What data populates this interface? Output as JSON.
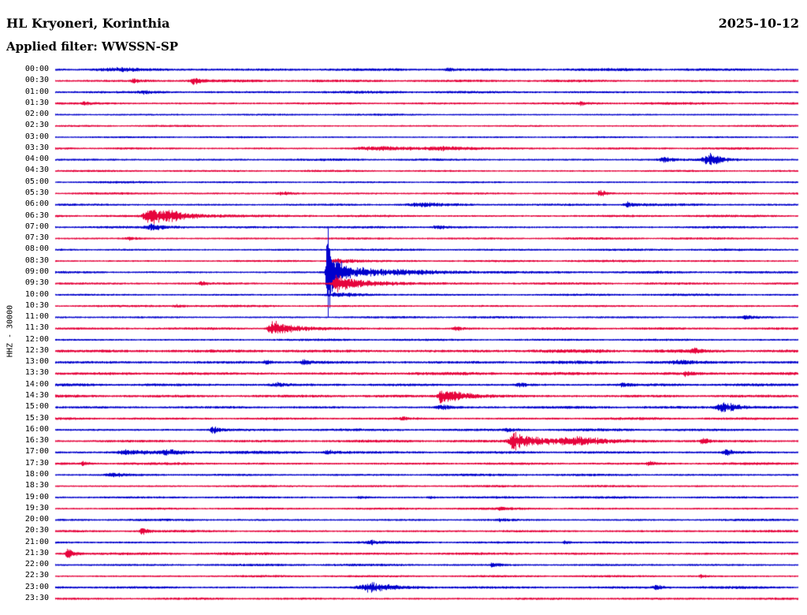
{
  "header": {
    "station_title": "HL Kryoneri, Korinthia",
    "date": "2025-10-12",
    "filter_label": "Applied filter: WWSSN-SP"
  },
  "y_axis_label": "HHZ - 30000",
  "colors": {
    "blue": "#0000cd",
    "red": "#e6043c",
    "text": "#000000",
    "background": "#ffffff"
  },
  "chart_data": {
    "type": "line",
    "subtype": "helicorder-seismogram",
    "title": "HL Kryoneri, Korinthia - 2025-10-12 - Applied filter: WWSSN-SP",
    "station_channel": "HHZ",
    "scale": 30000,
    "minutes_per_line": 30,
    "hours_shown": 24,
    "trace_color_cycle": [
      "blue",
      "red"
    ],
    "legend": "none",
    "grid": "off",
    "rows": [
      {
        "t": "00:00",
        "c": "blue",
        "n": 1.6
      },
      {
        "t": "00:30",
        "c": "red",
        "n": 1.5
      },
      {
        "t": "01:00",
        "c": "blue",
        "n": 1.4
      },
      {
        "t": "01:30",
        "c": "red",
        "n": 1.3
      },
      {
        "t": "02:00",
        "c": "blue",
        "n": 1.0
      },
      {
        "t": "02:30",
        "c": "red",
        "n": 1.0
      },
      {
        "t": "03:00",
        "c": "blue",
        "n": 1.0
      },
      {
        "t": "03:30",
        "c": "red",
        "n": 1.2
      },
      {
        "t": "04:00",
        "c": "blue",
        "n": 1.2
      },
      {
        "t": "04:30",
        "c": "red",
        "n": 1.1
      },
      {
        "t": "05:00",
        "c": "blue",
        "n": 1.1
      },
      {
        "t": "05:30",
        "c": "red",
        "n": 1.2
      },
      {
        "t": "06:00",
        "c": "blue",
        "n": 1.3
      },
      {
        "t": "06:30",
        "c": "red",
        "n": 1.3
      },
      {
        "t": "07:00",
        "c": "blue",
        "n": 1.3
      },
      {
        "t": "07:30",
        "c": "red",
        "n": 1.2
      },
      {
        "t": "08:00",
        "c": "blue",
        "n": 1.2
      },
      {
        "t": "08:30",
        "c": "red",
        "n": 1.2
      },
      {
        "t": "09:00",
        "c": "blue",
        "n": 1.3
      },
      {
        "t": "09:30",
        "c": "red",
        "n": 1.3
      },
      {
        "t": "10:00",
        "c": "blue",
        "n": 1.2
      },
      {
        "t": "10:30",
        "c": "red",
        "n": 1.2
      },
      {
        "t": "11:00",
        "c": "blue",
        "n": 1.2
      },
      {
        "t": "11:30",
        "c": "red",
        "n": 1.4
      },
      {
        "t": "12:00",
        "c": "blue",
        "n": 1.2
      },
      {
        "t": "12:30",
        "c": "red",
        "n": 2.0
      },
      {
        "t": "13:00",
        "c": "blue",
        "n": 1.8
      },
      {
        "t": "13:30",
        "c": "red",
        "n": 1.8
      },
      {
        "t": "14:00",
        "c": "blue",
        "n": 1.6
      },
      {
        "t": "14:30",
        "c": "red",
        "n": 1.6
      },
      {
        "t": "15:00",
        "c": "blue",
        "n": 1.5
      },
      {
        "t": "15:30",
        "c": "red",
        "n": 1.4
      },
      {
        "t": "16:00",
        "c": "blue",
        "n": 1.5
      },
      {
        "t": "16:30",
        "c": "red",
        "n": 1.5
      },
      {
        "t": "17:00",
        "c": "blue",
        "n": 1.6
      },
      {
        "t": "17:30",
        "c": "red",
        "n": 1.4
      },
      {
        "t": "18:00",
        "c": "blue",
        "n": 1.3
      },
      {
        "t": "18:30",
        "c": "red",
        "n": 1.2
      },
      {
        "t": "19:00",
        "c": "blue",
        "n": 1.3
      },
      {
        "t": "19:30",
        "c": "red",
        "n": 1.2
      },
      {
        "t": "20:00",
        "c": "blue",
        "n": 1.2
      },
      {
        "t": "20:30",
        "c": "red",
        "n": 1.3
      },
      {
        "t": "21:00",
        "c": "blue",
        "n": 1.3
      },
      {
        "t": "21:30",
        "c": "red",
        "n": 1.5
      },
      {
        "t": "22:00",
        "c": "blue",
        "n": 1.3
      },
      {
        "t": "22:30",
        "c": "red",
        "n": 1.2
      },
      {
        "t": "23:00",
        "c": "blue",
        "n": 1.4
      },
      {
        "t": "23:30",
        "c": "red",
        "n": 1.3
      }
    ],
    "events": [
      {
        "r": 0,
        "x": 0.09,
        "a": 2.2,
        "at": 20,
        "d": 40
      },
      {
        "r": 0,
        "x": 0.53,
        "a": 2.0,
        "at": 3,
        "d": 8
      },
      {
        "r": 1,
        "x": 0.105,
        "a": 2.5,
        "at": 3,
        "d": 10
      },
      {
        "r": 1,
        "x": 0.186,
        "a": 5,
        "at": 3,
        "d": 8
      },
      {
        "r": 2,
        "x": 0.12,
        "a": 2,
        "at": 6,
        "d": 15
      },
      {
        "r": 3,
        "x": 0.04,
        "a": 2,
        "at": 3,
        "d": 8
      },
      {
        "r": 3,
        "x": 0.707,
        "a": 3,
        "at": 2,
        "d": 6
      },
      {
        "r": 7,
        "x": 0.43,
        "a": 2.5,
        "at": 15,
        "d": 60
      },
      {
        "r": 7,
        "x": 0.52,
        "a": 2.5,
        "at": 10,
        "d": 40
      },
      {
        "r": 8,
        "x": 0.82,
        "a": 4,
        "at": 4,
        "d": 12
      },
      {
        "r": 8,
        "x": 0.885,
        "a": 9,
        "at": 8,
        "d": 14
      },
      {
        "r": 11,
        "x": 0.31,
        "a": 2.2,
        "at": 8,
        "d": 15
      },
      {
        "r": 11,
        "x": 0.734,
        "a": 6,
        "at": 2,
        "d": 5
      },
      {
        "r": 12,
        "x": 0.5,
        "a": 2.5,
        "at": 15,
        "d": 30
      },
      {
        "r": 12,
        "x": 0.77,
        "a": 4,
        "at": 3,
        "d": 12
      },
      {
        "r": 13,
        "x": 0.128,
        "a": 16,
        "at": 5,
        "d": 18
      },
      {
        "r": 13,
        "x": 0.16,
        "a": 4,
        "at": 10,
        "d": 50
      },
      {
        "r": 14,
        "x": 0.128,
        "a": 4,
        "at": 4,
        "d": 20
      },
      {
        "r": 14,
        "x": 0.515,
        "a": 3,
        "at": 4,
        "d": 12
      },
      {
        "r": 15,
        "x": 0.1,
        "a": 2,
        "at": 4,
        "d": 10
      },
      {
        "r": 17,
        "x": 0.383,
        "a": 3,
        "at": 8,
        "d": 20
      },
      {
        "r": 18,
        "x": 0.367,
        "a": 85,
        "at": 1.5,
        "d": 3
      },
      {
        "r": 18,
        "x": 0.369,
        "a": 28,
        "at": 2,
        "d": 10
      },
      {
        "r": 18,
        "x": 0.38,
        "a": 8,
        "at": 5,
        "d": 80
      },
      {
        "r": 19,
        "x": 0.197,
        "a": 2.5,
        "at": 2,
        "d": 6
      },
      {
        "r": 19,
        "x": 0.378,
        "a": 12,
        "at": 3,
        "d": 15
      },
      {
        "r": 19,
        "x": 0.4,
        "a": 4,
        "at": 10,
        "d": 60
      },
      {
        "r": 20,
        "x": 0.38,
        "a": 2.5,
        "at": 8,
        "d": 30
      },
      {
        "r": 21,
        "x": 0.165,
        "a": 2,
        "at": 4,
        "d": 8
      },
      {
        "r": 22,
        "x": 0.93,
        "a": 2.5,
        "at": 4,
        "d": 10
      },
      {
        "r": 23,
        "x": 0.293,
        "a": 12,
        "at": 4,
        "d": 10
      },
      {
        "r": 23,
        "x": 0.31,
        "a": 4,
        "at": 8,
        "d": 40
      },
      {
        "r": 23,
        "x": 0.54,
        "a": 3,
        "at": 3,
        "d": 8
      },
      {
        "r": 25,
        "x": 0.86,
        "a": 4,
        "at": 3,
        "d": 8
      },
      {
        "r": 26,
        "x": 0.284,
        "a": 3.5,
        "at": 2,
        "d": 6
      },
      {
        "r": 26,
        "x": 0.335,
        "a": 3,
        "at": 4,
        "d": 10
      },
      {
        "r": 26,
        "x": 0.84,
        "a": 2.5,
        "at": 5,
        "d": 10
      },
      {
        "r": 27,
        "x": 0.85,
        "a": 4.5,
        "at": 2,
        "d": 6
      },
      {
        "r": 28,
        "x": 0.3,
        "a": 2.5,
        "at": 5,
        "d": 10
      },
      {
        "r": 28,
        "x": 0.627,
        "a": 3,
        "at": 4,
        "d": 8
      },
      {
        "r": 28,
        "x": 0.766,
        "a": 3,
        "at": 4,
        "d": 8
      },
      {
        "r": 29,
        "x": 0.521,
        "a": 12,
        "at": 4,
        "d": 12
      },
      {
        "r": 29,
        "x": 0.54,
        "a": 4,
        "at": 8,
        "d": 40
      },
      {
        "r": 30,
        "x": 0.52,
        "a": 4,
        "at": 4,
        "d": 10
      },
      {
        "r": 30,
        "x": 0.9,
        "a": 8,
        "at": 6,
        "d": 18
      },
      {
        "r": 31,
        "x": 0.47,
        "a": 2,
        "at": 5,
        "d": 10
      },
      {
        "r": 32,
        "x": 0.213,
        "a": 5,
        "at": 3,
        "d": 8
      },
      {
        "r": 32,
        "x": 0.61,
        "a": 2.5,
        "at": 4,
        "d": 8
      },
      {
        "r": 33,
        "x": 0.617,
        "a": 13,
        "at": 4,
        "d": 35
      },
      {
        "r": 33,
        "x": 0.7,
        "a": 6,
        "at": 15,
        "d": 40
      },
      {
        "r": 33,
        "x": 0.872,
        "a": 5,
        "at": 2,
        "d": 6
      },
      {
        "r": 34,
        "x": 0.1,
        "a": 3,
        "at": 10,
        "d": 25
      },
      {
        "r": 34,
        "x": 0.155,
        "a": 3,
        "at": 8,
        "d": 20
      },
      {
        "r": 34,
        "x": 0.367,
        "a": 3,
        "at": 4,
        "d": 10
      },
      {
        "r": 34,
        "x": 0.905,
        "a": 4,
        "at": 4,
        "d": 10
      },
      {
        "r": 35,
        "x": 0.037,
        "a": 2.5,
        "at": 2,
        "d": 6
      },
      {
        "r": 35,
        "x": 0.8,
        "a": 4,
        "at": 2,
        "d": 6
      },
      {
        "r": 36,
        "x": 0.08,
        "a": 2.2,
        "at": 8,
        "d": 20
      },
      {
        "r": 38,
        "x": 0.41,
        "a": 3,
        "at": 2,
        "d": 6
      },
      {
        "r": 38,
        "x": 0.505,
        "a": 2.5,
        "at": 2,
        "d": 5
      },
      {
        "r": 39,
        "x": 0.6,
        "a": 2.2,
        "at": 3,
        "d": 8
      },
      {
        "r": 40,
        "x": 0.6,
        "a": 2,
        "at": 4,
        "d": 10
      },
      {
        "r": 41,
        "x": 0.117,
        "a": 6,
        "at": 2,
        "d": 6
      },
      {
        "r": 42,
        "x": 0.425,
        "a": 3,
        "at": 3,
        "d": 8
      },
      {
        "r": 42,
        "x": 0.686,
        "a": 3,
        "at": 2,
        "d": 6
      },
      {
        "r": 43,
        "x": 0.016,
        "a": 9,
        "at": 2,
        "d": 8
      },
      {
        "r": 44,
        "x": 0.59,
        "a": 3,
        "at": 3,
        "d": 8
      },
      {
        "r": 45,
        "x": 0.87,
        "a": 2,
        "at": 2,
        "d": 6
      },
      {
        "r": 46,
        "x": 0.425,
        "a": 7,
        "at": 10,
        "d": 25
      },
      {
        "r": 46,
        "x": 0.81,
        "a": 3,
        "at": 3,
        "d": 8
      }
    ]
  }
}
